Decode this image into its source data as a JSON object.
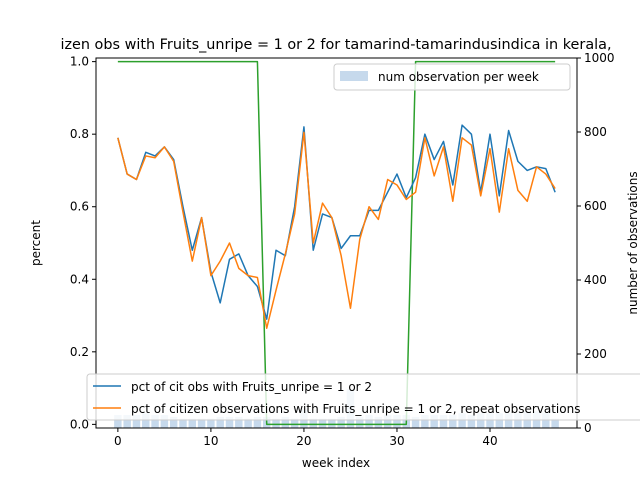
{
  "chart_data": {
    "type": "line",
    "title": "izen obs with Fruits_unripe = 1 or 2 for tamarind-tamarindusindica in kerala,",
    "xlabel": "week index",
    "ylabel": "percent",
    "y2label": "number of observations",
    "xlim": [
      -2.35,
      49.35
    ],
    "ylim": [
      -0.01,
      1.01
    ],
    "y2lim": [
      0,
      1000
    ],
    "x_ticks": [
      "0",
      "10",
      "20",
      "30",
      "40"
    ],
    "y_ticks": [
      "0.0",
      "0.2",
      "0.4",
      "0.6",
      "0.8",
      "1.0"
    ],
    "y2_ticks": [
      "0",
      "200",
      "400",
      "600",
      "800",
      "1000"
    ],
    "grid": false,
    "legend_upper": {
      "position": "top-right",
      "entries": [
        "num observation per week"
      ]
    },
    "legend_lower": {
      "position": "bottom-left",
      "entries": [
        "pct of cit obs with Fruits_unripe = 1 or 2",
        "pct of citizen observations with Fruits_unripe = 1 or 2, repeat observations"
      ]
    },
    "x": [
      0,
      1,
      2,
      3,
      4,
      5,
      6,
      7,
      8,
      9,
      10,
      11,
      12,
      13,
      14,
      15,
      16,
      17,
      18,
      19,
      20,
      21,
      22,
      23,
      24,
      25,
      26,
      27,
      28,
      29,
      30,
      31,
      32,
      33,
      34,
      35,
      36,
      37,
      38,
      39,
      40,
      41,
      42,
      43,
      44,
      45,
      46,
      47
    ],
    "series": [
      {
        "name": "pct of cit obs with Fruits_unripe = 1 or 2",
        "color": "#1f77b4",
        "values": [
          0.79,
          0.69,
          0.675,
          0.75,
          0.74,
          0.765,
          0.73,
          0.6,
          0.48,
          0.57,
          0.42,
          0.335,
          0.455,
          0.47,
          0.41,
          0.38,
          0.29,
          0.48,
          0.465,
          0.6,
          0.82,
          0.48,
          0.58,
          0.57,
          0.485,
          0.52,
          0.52,
          0.59,
          0.59,
          0.64,
          0.69,
          0.625,
          0.68,
          0.8,
          0.73,
          0.78,
          0.66,
          0.825,
          0.8,
          0.64,
          0.8,
          0.63,
          0.81,
          0.725,
          0.7,
          0.71,
          0.705,
          0.64
        ]
      },
      {
        "name": "pct of citizen observations with Fruits_unripe = 1 or 2, repeat observations",
        "color": "#ff7f0e",
        "values": [
          0.79,
          0.69,
          0.675,
          0.74,
          0.735,
          0.765,
          0.725,
          0.585,
          0.45,
          0.57,
          0.41,
          0.45,
          0.5,
          0.43,
          0.41,
          0.405,
          0.265,
          0.37,
          0.47,
          0.58,
          0.805,
          0.5,
          0.61,
          0.57,
          0.465,
          0.32,
          0.51,
          0.6,
          0.565,
          0.675,
          0.66,
          0.62,
          0.64,
          0.79,
          0.685,
          0.765,
          0.615,
          0.79,
          0.77,
          0.63,
          0.76,
          0.585,
          0.76,
          0.645,
          0.615,
          0.71,
          0.69,
          0.65
        ]
      },
      {
        "name": "",
        "color": "#2ca02c",
        "values": [
          1.0,
          1.0,
          1.0,
          1.0,
          1.0,
          1.0,
          1.0,
          1.0,
          1.0,
          1.0,
          1.0,
          1.0,
          1.0,
          1.0,
          1.0,
          1.0,
          0.0,
          0.0,
          0.0,
          0.0,
          0.0,
          0.0,
          0.0,
          0.0,
          0.0,
          0.0,
          0.0,
          0.0,
          0.0,
          0.0,
          0.0,
          0.0,
          1.0,
          1.0,
          1.0,
          1.0,
          1.0,
          1.0,
          1.0,
          1.0,
          1.0,
          1.0,
          1.0,
          1.0,
          1.0,
          1.0,
          1.0,
          1.0
        ]
      }
    ],
    "bars": {
      "name": "num observation per week",
      "color": "#c6d9ec",
      "values": [
        35,
        35,
        35,
        40,
        35,
        35,
        30,
        25,
        25,
        25,
        25,
        30,
        30,
        30,
        25,
        30,
        30,
        25,
        30,
        25,
        50,
        25,
        25,
        25,
        30,
        105,
        30,
        35,
        30,
        35,
        35,
        35,
        30,
        35,
        35,
        35,
        35,
        40,
        35,
        40,
        40,
        40,
        40,
        40,
        45,
        45,
        40,
        25
      ]
    }
  }
}
